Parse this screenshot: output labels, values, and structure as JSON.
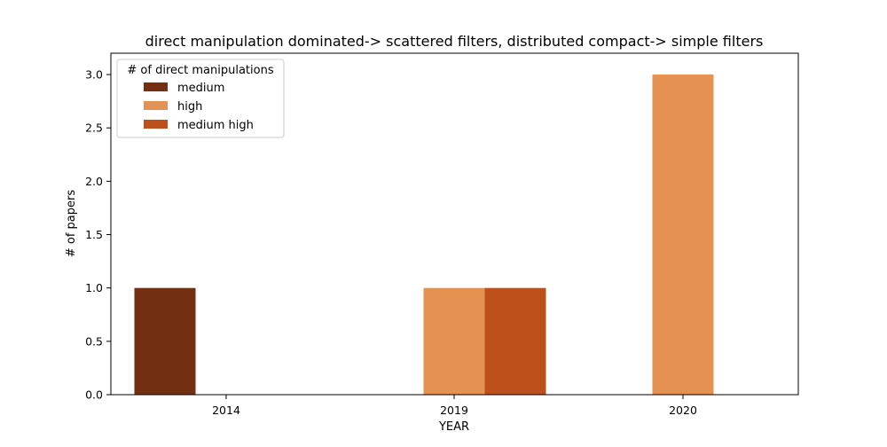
{
  "chart_data": {
    "type": "bar",
    "title": "direct manipulation dominated-> scattered filters, distributed compact-> simple filters",
    "xlabel": "YEAR",
    "ylabel": "# of papers",
    "categories": [
      "2014",
      "2019",
      "2020"
    ],
    "ylim": [
      0,
      3.2
    ],
    "yticks": [
      "0.0",
      "0.5",
      "1.0",
      "1.5",
      "2.0",
      "2.5",
      "3.0"
    ],
    "grid": false,
    "legend": {
      "title": "# of direct manipulations",
      "placement": "top-left"
    },
    "series": [
      {
        "name": "medium",
        "color": "#732f12",
        "values": [
          1,
          0,
          0
        ]
      },
      {
        "name": "high",
        "color": "#e59152",
        "values": [
          0,
          1,
          3
        ]
      },
      {
        "name": "medium high",
        "color": "#bd511c",
        "values": [
          0,
          1,
          0
        ]
      }
    ]
  }
}
